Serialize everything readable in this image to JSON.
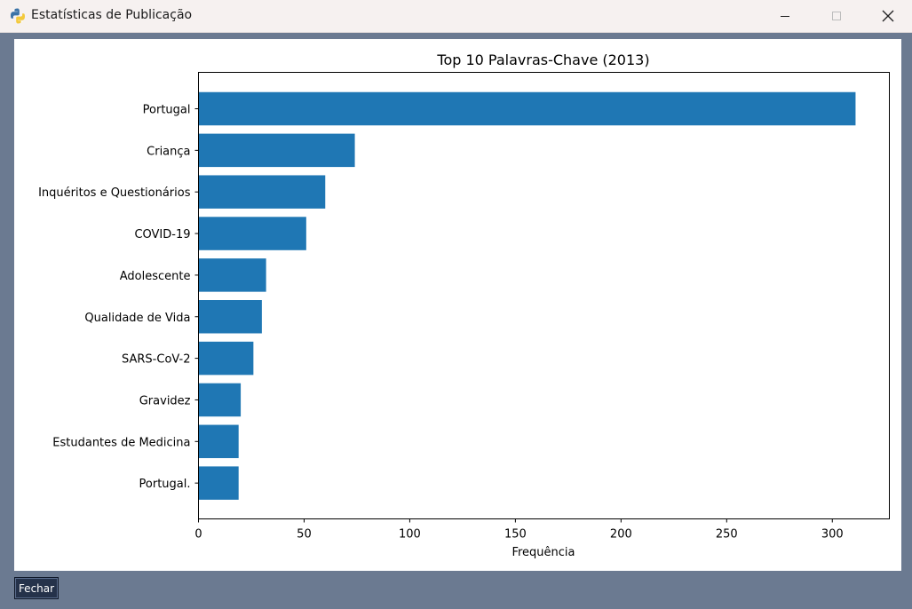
{
  "window": {
    "title": "Estatísticas de Publicação",
    "icon": "python-icon"
  },
  "colors": {
    "bar": "#1f77b4",
    "window_bg": "#6b7a91",
    "button_bg": "#25324a"
  },
  "footer": {
    "close_label": "Fechar"
  },
  "chart_data": {
    "type": "bar",
    "orientation": "horizontal",
    "title": "Top 10 Palavras-Chave (2013)",
    "xlabel": "Frequência",
    "ylabel": "",
    "xlim": [
      0,
      327
    ],
    "xticks": [
      0,
      50,
      100,
      150,
      200,
      250,
      300
    ],
    "categories": [
      "Portugal",
      "Criança",
      "Inquéritos e Questionários",
      "COVID-19",
      "Adolescente",
      "Qualidade de Vida",
      "SARS-CoV-2",
      "Gravidez",
      "Estudantes de Medicina",
      "Portugal."
    ],
    "values": [
      311,
      74,
      60,
      51,
      32,
      30,
      26,
      20,
      19,
      19
    ]
  }
}
